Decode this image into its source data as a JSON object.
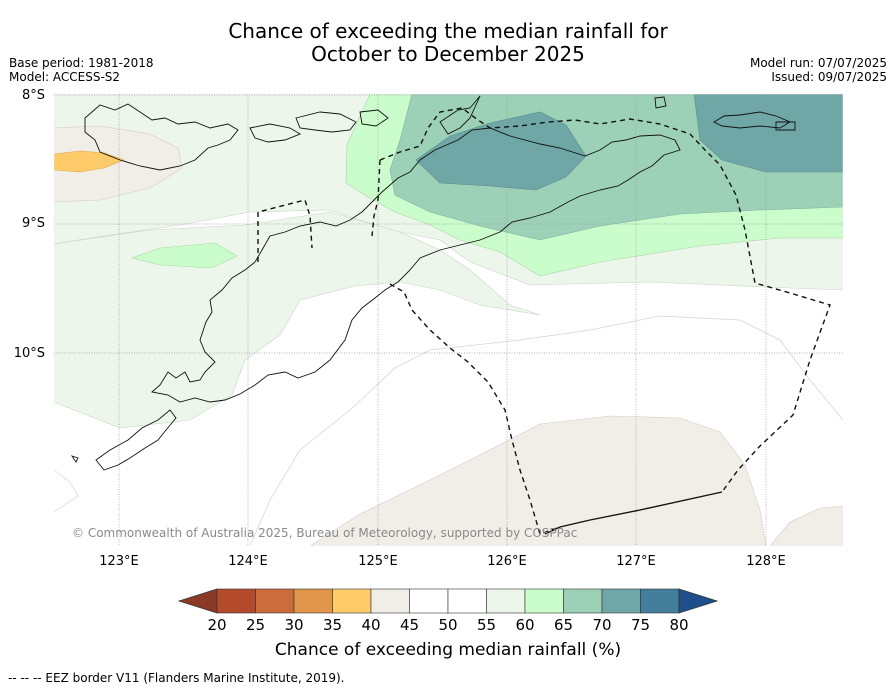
{
  "title": {
    "line1": "Chance of exceeding the median rainfall for",
    "line2": "October to December 2025"
  },
  "meta_left": {
    "base_period": "Base period: 1981-2018",
    "model": "Model: ACCESS-S2"
  },
  "meta_right": {
    "model_run": "Model run: 07/07/2025",
    "issued": "Issued: 09/07/2025"
  },
  "map": {
    "lat_ticks": [
      "8°S",
      "9°S",
      "10°S"
    ],
    "lon_ticks": [
      "123°E",
      "124°E",
      "125°E",
      "126°E",
      "127°E",
      "128°E"
    ],
    "copyright": "© Commonwealth of Australia 2025, Bureau of Meteorology, supported by COSPPac"
  },
  "colorbar": {
    "labels": [
      "20",
      "25",
      "30",
      "35",
      "40",
      "45",
      "50",
      "55",
      "60",
      "65",
      "70",
      "75",
      "80"
    ],
    "colors": [
      "#b44a2c",
      "#cc6b3b",
      "#e0964a",
      "#fecb6a",
      "#f1ede7",
      "#ffffff",
      "#ffffff",
      "#edf6ea",
      "#cbfccb",
      "#9cd1b8",
      "#6fa7a6",
      "#437e9c"
    ],
    "under_color": "#8b3a28",
    "over_color": "#1e4f8c",
    "label": "Chance of exceeding median rainfall (%)"
  },
  "footer": "--  --  -- EEZ border V11 (Flanders Marine Institute, 2019)."
}
